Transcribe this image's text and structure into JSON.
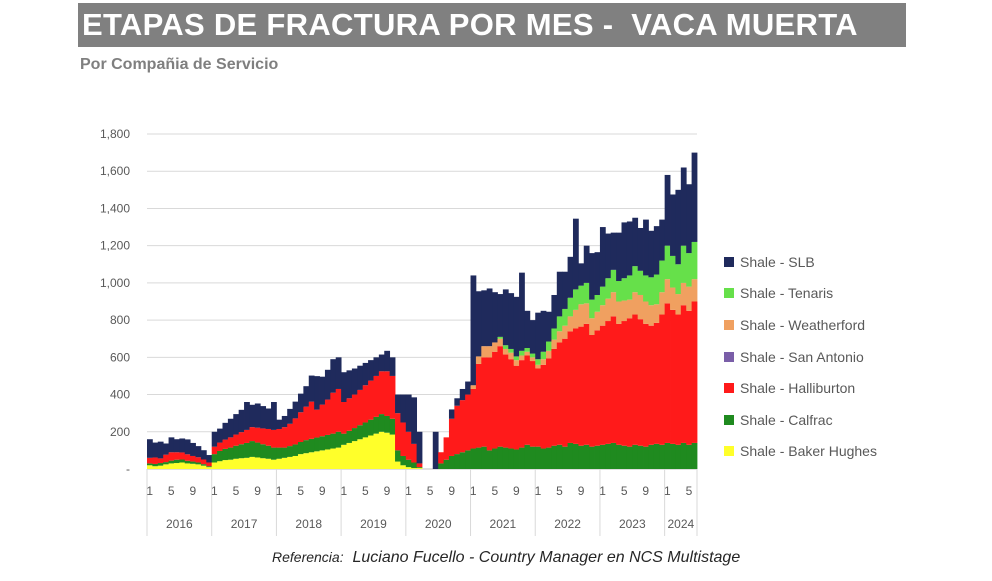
{
  "header": {
    "title": "ETAPAS DE FRACTURA POR MES -  VACA MUERTA",
    "subtitle": "Por Compañia de Servicio"
  },
  "footer": {
    "reference_prefix": "Referencia:",
    "reference_text": "Luciano Fucello - Country Manager en NCS Multistage"
  },
  "chart_data": {
    "type": "bar",
    "stacked": true,
    "title": "ETAPAS DE FRACTURA POR MES -  VACA MUERTA",
    "subtitle": "Por Compañia de Servicio",
    "ylim": [
      0,
      1800
    ],
    "y_ticks": [
      "-",
      "200",
      "400",
      "600",
      "800",
      "1,000",
      "1,200",
      "1,400",
      "1,600",
      "1,800"
    ],
    "grid": "horizontal",
    "legend_position": "right",
    "years": [
      "2016",
      "2017",
      "2018",
      "2019",
      "2020",
      "2021",
      "2022",
      "2023",
      "2024"
    ],
    "month_tick_labels": [
      "1",
      "5",
      "9"
    ],
    "series_order_bottom_to_top": [
      "Shale - Baker Hughes",
      "Shale - Calfrac",
      "Shale - Halliburton",
      "Shale - San Antonio",
      "Shale - Weatherford",
      "Shale - Tenaris",
      "Shale - SLB"
    ],
    "legend": [
      {
        "name": "Shale - SLB",
        "color": "#1f2a5c"
      },
      {
        "name": "Shale - Tenaris",
        "color": "#66e04a"
      },
      {
        "name": "Shale - Weatherford",
        "color": "#f0a060"
      },
      {
        "name": "Shale - San Antonio",
        "color": "#7a5ea8"
      },
      {
        "name": "Shale - Halliburton",
        "color": "#ff1a1a"
      },
      {
        "name": "Shale - Calfrac",
        "color": "#1f8a1f"
      },
      {
        "name": "Shale - Baker Hughes",
        "color": "#ffff2a"
      }
    ],
    "x": [
      "2016-01",
      "2016-02",
      "2016-03",
      "2016-04",
      "2016-05",
      "2016-06",
      "2016-07",
      "2016-08",
      "2016-09",
      "2016-10",
      "2016-11",
      "2016-12",
      "2017-01",
      "2017-02",
      "2017-03",
      "2017-04",
      "2017-05",
      "2017-06",
      "2017-07",
      "2017-08",
      "2017-09",
      "2017-10",
      "2017-11",
      "2017-12",
      "2018-01",
      "2018-02",
      "2018-03",
      "2018-04",
      "2018-05",
      "2018-06",
      "2018-07",
      "2018-08",
      "2018-09",
      "2018-10",
      "2018-11",
      "2018-12",
      "2019-01",
      "2019-02",
      "2019-03",
      "2019-04",
      "2019-05",
      "2019-06",
      "2019-07",
      "2019-08",
      "2019-09",
      "2019-10",
      "2019-11",
      "2019-12",
      "2020-01",
      "2020-02",
      "2020-03",
      "2020-04",
      "2020-05",
      "2020-06",
      "2020-07",
      "2020-08",
      "2020-09",
      "2020-10",
      "2020-11",
      "2020-12",
      "2021-01",
      "2021-02",
      "2021-03",
      "2021-04",
      "2021-05",
      "2021-06",
      "2021-07",
      "2021-08",
      "2021-09",
      "2021-10",
      "2021-11",
      "2021-12",
      "2022-01",
      "2022-02",
      "2022-03",
      "2022-04",
      "2022-05",
      "2022-06",
      "2022-07",
      "2022-08",
      "2022-09",
      "2022-10",
      "2022-11",
      "2022-12",
      "2023-01",
      "2023-02",
      "2023-03",
      "2023-04",
      "2023-05",
      "2023-06",
      "2023-07",
      "2023-08",
      "2023-09",
      "2023-10",
      "2023-11",
      "2023-12",
      "2024-01",
      "2024-02",
      "2024-03",
      "2024-04",
      "2024-05",
      "2024-06"
    ],
    "series": [
      {
        "name": "Shale - Baker Hughes",
        "values": [
          20,
          15,
          18,
          25,
          30,
          32,
          35,
          30,
          28,
          25,
          18,
          10,
          35,
          42,
          48,
          50,
          55,
          58,
          60,
          65,
          62,
          58,
          55,
          50,
          55,
          60,
          65,
          70,
          80,
          85,
          90,
          95,
          100,
          105,
          110,
          115,
          130,
          140,
          150,
          160,
          170,
          180,
          190,
          200,
          195,
          185,
          40,
          20,
          10,
          5,
          5,
          0,
          0,
          0,
          0,
          0,
          0,
          0,
          0,
          0,
          0,
          0,
          0,
          0,
          0,
          0,
          0,
          0,
          0,
          0,
          0,
          0,
          0,
          0,
          0,
          0,
          0,
          0,
          0,
          0,
          0,
          0,
          0,
          0,
          0,
          0,
          0,
          0,
          0,
          0,
          0,
          0,
          0,
          0,
          0,
          0,
          0,
          0,
          0,
          0,
          0,
          0
        ]
      },
      {
        "name": "Shale - Calfrac",
        "values": [
          10,
          12,
          14,
          12,
          15,
          18,
          16,
          14,
          12,
          10,
          8,
          5,
          45,
          55,
          60,
          65,
          70,
          75,
          80,
          85,
          80,
          75,
          70,
          65,
          60,
          55,
          58,
          62,
          65,
          70,
          72,
          74,
          76,
          78,
          80,
          85,
          60,
          65,
          70,
          75,
          80,
          85,
          90,
          95,
          90,
          85,
          60,
          50,
          40,
          30,
          5,
          0,
          0,
          0,
          30,
          50,
          70,
          80,
          90,
          100,
          110,
          115,
          120,
          100,
          110,
          120,
          115,
          110,
          105,
          115,
          130,
          120,
          120,
          110,
          115,
          125,
          130,
          120,
          140,
          135,
          125,
          130,
          120,
          125,
          130,
          135,
          140,
          130,
          125,
          120,
          130,
          125,
          120,
          130,
          135,
          130,
          140,
          135,
          130,
          140,
          130,
          140
        ]
      },
      {
        "name": "Shale - Halliburton",
        "values": [
          30,
          35,
          25,
          40,
          45,
          40,
          38,
          35,
          30,
          28,
          25,
          20,
          40,
          45,
          50,
          55,
          60,
          65,
          70,
          75,
          80,
          85,
          90,
          95,
          100,
          110,
          120,
          140,
          160,
          180,
          200,
          150,
          170,
          190,
          220,
          230,
          170,
          175,
          180,
          190,
          200,
          210,
          220,
          230,
          240,
          230,
          200,
          180,
          150,
          100,
          20,
          0,
          0,
          0,
          60,
          120,
          200,
          260,
          280,
          300,
          320,
          450,
          480,
          500,
          520,
          540,
          500,
          480,
          450,
          470,
          480,
          460,
          420,
          450,
          480,
          520,
          550,
          580,
          600,
          620,
          640,
          650,
          600,
          620,
          640,
          660,
          680,
          650,
          670,
          690,
          700,
          680,
          660,
          640,
          650,
          700,
          750,
          720,
          700,
          740,
          720,
          760
        ]
      },
      {
        "name": "Shale - San Antonio",
        "values": [
          0,
          0,
          0,
          0,
          0,
          0,
          0,
          0,
          0,
          0,
          0,
          0,
          0,
          0,
          0,
          0,
          0,
          0,
          0,
          0,
          0,
          0,
          0,
          0,
          0,
          0,
          0,
          0,
          0,
          0,
          0,
          0,
          0,
          0,
          0,
          0,
          0,
          0,
          0,
          0,
          0,
          0,
          0,
          0,
          0,
          0,
          0,
          0,
          0,
          0,
          0,
          0,
          0,
          0,
          0,
          0,
          0,
          0,
          0,
          0,
          0,
          0,
          0,
          0,
          0,
          0,
          0,
          0,
          0,
          0,
          0,
          0,
          0,
          0,
          0,
          0,
          0,
          0,
          0,
          0,
          0,
          0,
          0,
          0,
          0,
          0,
          0,
          0,
          0,
          0,
          0,
          0,
          0,
          0,
          0,
          0,
          0,
          0,
          0,
          0,
          0,
          0
        ]
      },
      {
        "name": "Shale - Weatherford",
        "values": [
          0,
          0,
          0,
          0,
          0,
          0,
          0,
          0,
          0,
          0,
          0,
          0,
          0,
          0,
          0,
          0,
          0,
          0,
          0,
          0,
          0,
          0,
          0,
          0,
          0,
          0,
          0,
          0,
          0,
          0,
          0,
          0,
          0,
          0,
          0,
          0,
          0,
          0,
          0,
          0,
          0,
          0,
          0,
          0,
          0,
          0,
          0,
          0,
          0,
          0,
          0,
          0,
          0,
          0,
          0,
          0,
          0,
          0,
          0,
          0,
          20,
          40,
          60,
          60,
          50,
          40,
          30,
          35,
          30,
          25,
          20,
          20,
          20,
          30,
          40,
          50,
          60,
          70,
          80,
          100,
          120,
          110,
          90,
          100,
          110,
          120,
          130,
          120,
          110,
          100,
          120,
          130,
          120,
          110,
          100,
          120,
          130,
          120,
          110,
          120,
          130,
          120
        ]
      },
      {
        "name": "Shale - Tenaris",
        "values": [
          0,
          0,
          0,
          0,
          0,
          0,
          0,
          0,
          0,
          0,
          0,
          0,
          0,
          0,
          0,
          0,
          0,
          0,
          0,
          0,
          0,
          0,
          0,
          0,
          0,
          0,
          0,
          0,
          0,
          0,
          0,
          0,
          0,
          0,
          0,
          0,
          0,
          0,
          0,
          0,
          0,
          0,
          0,
          0,
          0,
          0,
          0,
          0,
          0,
          0,
          0,
          0,
          0,
          0,
          0,
          0,
          0,
          0,
          0,
          0,
          0,
          0,
          0,
          0,
          0,
          10,
          20,
          20,
          20,
          25,
          20,
          20,
          30,
          40,
          50,
          60,
          80,
          90,
          100,
          110,
          100,
          110,
          100,
          90,
          100,
          110,
          120,
          110,
          120,
          130,
          140,
          130,
          140,
          150,
          160,
          170,
          180,
          170,
          160,
          200,
          180,
          200
        ]
      },
      {
        "name": "Shale - SLB",
        "values": [
          100,
          80,
          90,
          60,
          80,
          70,
          75,
          80,
          70,
          60,
          50,
          40,
          80,
          75,
          90,
          100,
          110,
          120,
          150,
          120,
          130,
          120,
          110,
          150,
          50,
          60,
          80,
          90,
          100,
          110,
          140,
          180,
          150,
          160,
          180,
          170,
          160,
          150,
          140,
          130,
          120,
          110,
          100,
          90,
          110,
          100,
          100,
          150,
          200,
          250,
          170,
          0,
          0,
          200,
          0,
          0,
          50,
          40,
          60,
          70,
          590,
          350,
          300,
          310,
          270,
          230,
          300,
          300,
          320,
          420,
          200,
          180,
          250,
          220,
          160,
          180,
          240,
          200,
          220,
          380,
          120,
          200,
          250,
          230,
          320,
          240,
          200,
          260,
          300,
          290,
          260,
          230,
          300,
          250,
          260,
          220,
          380,
          330,
          400,
          420,
          370,
          480
        ]
      }
    ]
  }
}
